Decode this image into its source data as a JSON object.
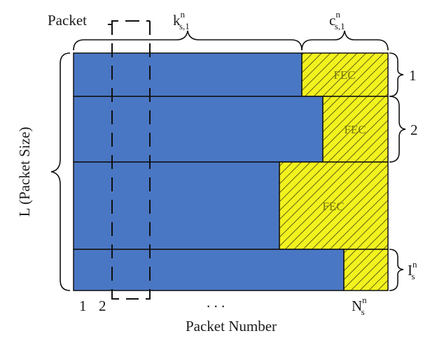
{
  "labels": {
    "packet": "Packet",
    "k_base": "k",
    "k_sup": "n",
    "k_sub": "s,1",
    "c_base": "c",
    "c_sup": "n",
    "c_sub": "s,1",
    "y_axis": "L (Packet Size)",
    "x_axis": "Packet Number",
    "tick_1": "1",
    "tick_2": "2",
    "dots": ". . .",
    "n_base": "N",
    "n_sup": "n",
    "n_sub": "s",
    "i_base": "I",
    "i_sup": "n",
    "i_sub": "s"
  },
  "blocks": [
    {
      "fec_label": "FEC",
      "row_label": "1"
    },
    {
      "fec_label": "FEC",
      "row_label": "2"
    },
    {
      "fec_label": "FEC"
    },
    {
      "fec_label": ""
    }
  ],
  "colors": {
    "data": "#4a77c4",
    "fec": "#f2f21e",
    "hatch": "#3c3c10",
    "line": "#111111"
  }
}
